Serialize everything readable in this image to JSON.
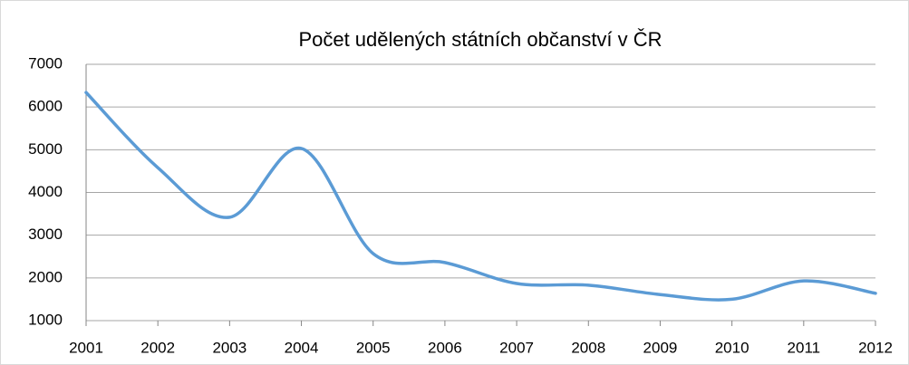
{
  "chart_data": {
    "type": "line",
    "title": "Počet udělených státních občanství v ČR",
    "categories": [
      "2001",
      "2002",
      "2003",
      "2004",
      "2005",
      "2006",
      "2007",
      "2008",
      "2009",
      "2010",
      "2011",
      "2012"
    ],
    "values": [
      6340,
      4580,
      3420,
      5030,
      2570,
      2360,
      1870,
      1830,
      1610,
      1500,
      1930,
      1640
    ],
    "color": "#5b9bd5",
    "smooth": true,
    "ylim": [
      1000,
      7000
    ],
    "yticks": [
      1000,
      2000,
      3000,
      4000,
      5000,
      6000,
      7000
    ],
    "grid": true
  }
}
